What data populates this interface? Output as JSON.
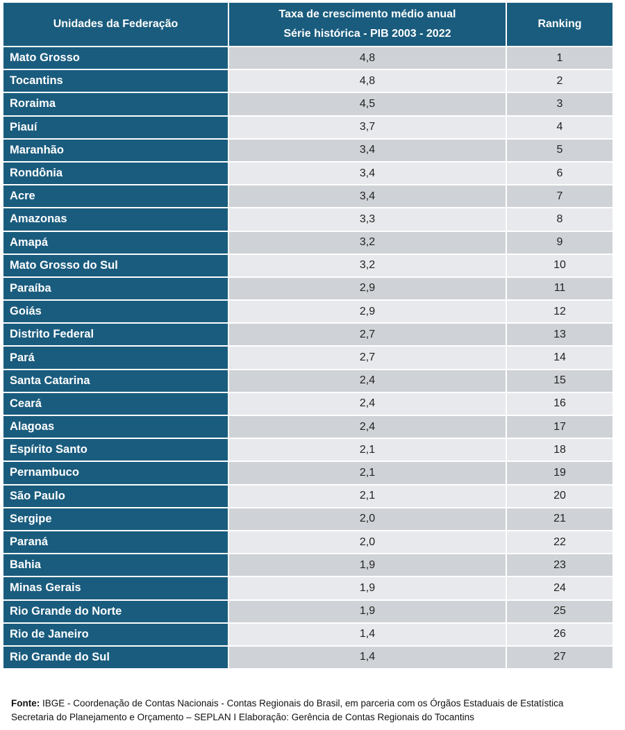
{
  "table": {
    "headers": {
      "uf": "Unidades da Federação",
      "taxa_line1": "Taxa de crescimento médio anual",
      "taxa_line2": "Série histórica - PIB 2003 - 2022",
      "ranking": "Ranking"
    },
    "rows": [
      {
        "uf": "Mato Grosso",
        "taxa": "4,8",
        "rank": "1"
      },
      {
        "uf": "Tocantins",
        "taxa": "4,8",
        "rank": "2"
      },
      {
        "uf": "Roraima",
        "taxa": "4,5",
        "rank": "3"
      },
      {
        "uf": "Piauí",
        "taxa": "3,7",
        "rank": "4"
      },
      {
        "uf": "Maranhão",
        "taxa": "3,4",
        "rank": "5"
      },
      {
        "uf": "Rondônia",
        "taxa": "3,4",
        "rank": "6"
      },
      {
        "uf": "Acre",
        "taxa": "3,4",
        "rank": "7"
      },
      {
        "uf": "Amazonas",
        "taxa": "3,3",
        "rank": "8"
      },
      {
        "uf": "Amapá",
        "taxa": "3,2",
        "rank": "9"
      },
      {
        "uf": "Mato Grosso do Sul",
        "taxa": "3,2",
        "rank": "10"
      },
      {
        "uf": "Paraíba",
        "taxa": "2,9",
        "rank": "11"
      },
      {
        "uf": "Goiás",
        "taxa": "2,9",
        "rank": "12"
      },
      {
        "uf": "Distrito Federal",
        "taxa": "2,7",
        "rank": "13"
      },
      {
        "uf": "Pará",
        "taxa": "2,7",
        "rank": "14"
      },
      {
        "uf": "Santa Catarina",
        "taxa": "2,4",
        "rank": "15"
      },
      {
        "uf": "Ceará",
        "taxa": "2,4",
        "rank": "16"
      },
      {
        "uf": "Alagoas",
        "taxa": "2,4",
        "rank": "17"
      },
      {
        "uf": "Espírito Santo",
        "taxa": "2,1",
        "rank": "18"
      },
      {
        "uf": "Pernambuco",
        "taxa": "2,1",
        "rank": "19"
      },
      {
        "uf": "São Paulo",
        "taxa": "2,1",
        "rank": "20"
      },
      {
        "uf": "Sergipe",
        "taxa": "2,0",
        "rank": "21"
      },
      {
        "uf": "Paraná",
        "taxa": "2,0",
        "rank": "22"
      },
      {
        "uf": "Bahia",
        "taxa": "1,9",
        "rank": "23"
      },
      {
        "uf": "Minas Gerais",
        "taxa": "1,9",
        "rank": "24"
      },
      {
        "uf": "Rio Grande do Norte",
        "taxa": "1,9",
        "rank": "25"
      },
      {
        "uf": "Rio de Janeiro",
        "taxa": "1,4",
        "rank": "26"
      },
      {
        "uf": "Rio Grande do Sul",
        "taxa": "1,4",
        "rank": "27"
      }
    ]
  },
  "footer": {
    "label": "Fonte:",
    "line1": " IBGE - Coordenação de Contas Nacionais - Contas Regionais do Brasil, em parceria com os Órgãos Estaduais de Estatística",
    "line2": "Secretaria do Planejamento e Orçamento – SEPLAN I Elaboração: Gerência de Contas Regionais do Tocantins"
  }
}
